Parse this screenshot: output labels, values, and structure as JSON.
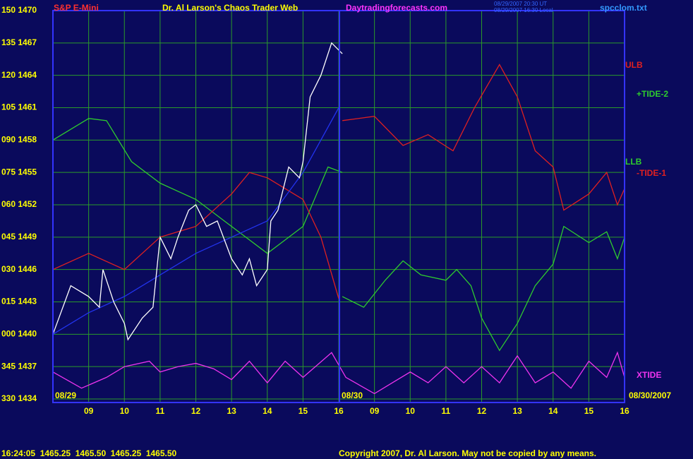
{
  "chart_data": {
    "type": "line",
    "title": "Dr. Al Larson's Chaos Trader Web",
    "subtitle": "S&P E-Mini",
    "website": "Daytradingforecasts.com",
    "timestamp_ut": "08/29/2007 20:30 UT",
    "timestamp_local": "08/29/2007 16:30 Local",
    "file_name": "spcclom.txt",
    "day_start_label": "08/29",
    "day_two_label": "08/30",
    "end_date_label": "08/30/2007",
    "tide_upper_label": "+TIDE-2",
    "tide_lower_label": "-TIDE-1",
    "quote_line": "16:24:05  1465.25  1465.50  1465.25  1465.50",
    "copyright": "Copyright 2007, Dr. Al Larson. May not be copied by any means.",
    "grid": true,
    "xlim": [
      0,
      16
    ],
    "xticks": [
      {
        "value": 1,
        "label": "09"
      },
      {
        "value": 2,
        "label": "10"
      },
      {
        "value": 3,
        "label": "11"
      },
      {
        "value": 4,
        "label": "12"
      },
      {
        "value": 5,
        "label": "13"
      },
      {
        "value": 6,
        "label": "14"
      },
      {
        "value": 7,
        "label": "15"
      },
      {
        "value": 8,
        "label": "16"
      },
      {
        "value": 9,
        "label": "09"
      },
      {
        "value": 10,
        "label": "10"
      },
      {
        "value": 11,
        "label": "11"
      },
      {
        "value": 12,
        "label": "12"
      },
      {
        "value": 13,
        "label": "13"
      },
      {
        "value": 14,
        "label": "14"
      },
      {
        "value": 15,
        "label": "15"
      },
      {
        "value": 16,
        "label": "16"
      }
    ],
    "ylim": [
      1434,
      1470
    ],
    "yticks": [
      {
        "value": 1434,
        "label": "330 1434"
      },
      {
        "value": 1437,
        "label": "345 1437"
      },
      {
        "value": 1440,
        "label": "000 1440"
      },
      {
        "value": 1443,
        "label": "015 1443"
      },
      {
        "value": 1446,
        "label": "030 1446"
      },
      {
        "value": 1449,
        "label": "045 1449"
      },
      {
        "value": 1452,
        "label": "060 1452"
      },
      {
        "value": 1455,
        "label": "075 1455"
      },
      {
        "value": 1458,
        "label": "090 1458"
      },
      {
        "value": 1461,
        "label": "105 1461"
      },
      {
        "value": 1464,
        "label": "120 1464"
      },
      {
        "value": 1467,
        "label": "135 1467"
      },
      {
        "value": 1470,
        "label": "150 1470"
      }
    ],
    "series": [
      {
        "color": "#2ecc2e",
        "x": [
          0,
          1,
          1.5,
          2.2,
          3,
          4,
          5,
          6,
          7,
          7.7,
          8.1
        ],
        "values": [
          1458,
          1460,
          1459.8,
          1456,
          1454,
          1452.5,
          1450,
          1447.5,
          1450,
          1455.5,
          1455
        ]
      },
      {
        "color": "#e02020",
        "x": [
          0,
          1,
          2,
          3,
          4,
          5,
          5.5,
          6,
          7,
          7.5,
          8
        ],
        "values": [
          1446,
          1447.5,
          1446,
          1449,
          1450,
          1453,
          1455,
          1454.5,
          1452.5,
          1449,
          1443.3
        ]
      },
      {
        "color": "#2233ee",
        "x": [
          0,
          1,
          2,
          3,
          4,
          5,
          6,
          7,
          8
        ],
        "values": [
          1440,
          1442,
          1443.5,
          1445.5,
          1447.5,
          1449,
          1450.5,
          1455,
          1461
        ]
      },
      {
        "color": "#ffffff",
        "x": [
          0,
          0.5,
          1,
          1.3,
          1.4,
          1.7,
          2,
          2.1,
          2.5,
          2.8,
          3,
          3.3,
          3.5,
          3.8,
          4,
          4.3,
          4.6,
          5,
          5.3,
          5.5,
          5.7,
          6,
          6.1,
          6.3,
          6.6,
          6.9,
          7,
          7.2,
          7.5,
          7.8,
          8.1
        ],
        "values": [
          1440,
          1444.5,
          1443.5,
          1442.5,
          1446,
          1443,
          1441,
          1439.5,
          1441.5,
          1442.5,
          1449,
          1447,
          1449,
          1451.5,
          1452,
          1450,
          1450.5,
          1447,
          1445.5,
          1447,
          1444.5,
          1446,
          1450.5,
          1451.5,
          1455.5,
          1454.5,
          1456,
          1462,
          1464,
          1467,
          1466
        ]
      },
      {
        "name": "ULB",
        "color": "#e02020",
        "x": [
          8.1,
          9,
          9.8,
          10.5,
          11.2,
          11.8,
          12.5,
          13,
          13.5,
          14,
          14.3,
          15,
          15.5,
          15.8,
          16
        ],
        "values": [
          1459.8,
          1460.2,
          1457.5,
          1458.5,
          1457,
          1461,
          1465,
          1462,
          1457,
          1455.5,
          1451.5,
          1453,
          1455,
          1452,
          1453.5
        ]
      },
      {
        "name": "LLB",
        "color": "#2ecc2e",
        "x": [
          8.1,
          8.7,
          9.3,
          9.8,
          10.3,
          11,
          11.3,
          11.7,
          12,
          12.5,
          13,
          13.5,
          14,
          14.3,
          15,
          15.5,
          15.8,
          16
        ],
        "values": [
          1443.5,
          1442.5,
          1445,
          1446.8,
          1445.5,
          1445,
          1446,
          1444.5,
          1441.5,
          1438.5,
          1441,
          1444.5,
          1446.5,
          1450,
          1448.5,
          1449.5,
          1447,
          1449
        ]
      },
      {
        "name": "XTIDE",
        "color": "#ee33ee",
        "x": [
          0,
          0.8,
          1.5,
          2,
          2.7,
          3,
          3.5,
          4,
          4.5,
          5,
          5.5,
          6,
          6.5,
          7,
          7.8,
          8.2,
          9,
          9.5,
          10,
          10.5,
          11,
          11.5,
          12,
          12.5,
          13,
          13.5,
          14,
          14.5,
          15,
          15.5,
          15.8,
          16
        ],
        "values": [
          1436.5,
          1435,
          1436,
          1437,
          1437.5,
          1436.5,
          1437,
          1437.3,
          1436.8,
          1435.8,
          1437.5,
          1435.5,
          1437.5,
          1436,
          1438.3,
          1436,
          1434.5,
          1435.5,
          1436.5,
          1435.5,
          1437,
          1435.5,
          1437,
          1435.5,
          1438,
          1435.5,
          1436.5,
          1435,
          1437.5,
          1436,
          1438.3,
          1436
        ]
      }
    ]
  }
}
